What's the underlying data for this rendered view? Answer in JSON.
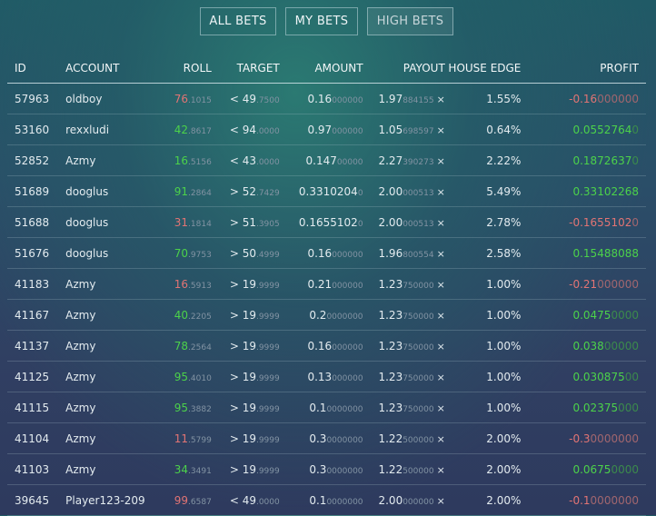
{
  "tabs": [
    {
      "label": "ALL BETS",
      "active": false
    },
    {
      "label": "MY BETS",
      "active": false
    },
    {
      "label": "HIGH BETS",
      "active": true
    }
  ],
  "columns": [
    "ID",
    "ACCOUNT",
    "ROLL",
    "TARGET",
    "AMOUNT",
    "PAYOUT",
    "HOUSE EDGE",
    "PROFIT"
  ],
  "colors": {
    "win": "#4cd24a",
    "loss": "#e27474",
    "dim": "#8293a3"
  },
  "rows": [
    {
      "id": "57963",
      "account": "oldboy",
      "roll_main": "76",
      "roll_dim": ".1015",
      "win": false,
      "target_main": "< 49",
      "target_dim": ".7500",
      "amount_main": "0.16",
      "amount_dim": "000000",
      "payout_main": "1.97",
      "payout_dim": "884155",
      "payout_mult": "×",
      "edge": "1.55%",
      "profit_main": "-0.16",
      "profit_dim": "000000"
    },
    {
      "id": "53160",
      "account": "rexxludi",
      "roll_main": "42",
      "roll_dim": ".8617",
      "win": true,
      "target_main": "< 94",
      "target_dim": ".0000",
      "amount_main": "0.97",
      "amount_dim": "000000",
      "payout_main": "1.05",
      "payout_dim": "698597",
      "payout_mult": "×",
      "edge": "0.64%",
      "profit_main": "0.0552764",
      "profit_dim": "0"
    },
    {
      "id": "52852",
      "account": "Azmy",
      "roll_main": "16",
      "roll_dim": ".5156",
      "win": true,
      "target_main": "< 43",
      "target_dim": ".0000",
      "amount_main": "0.147",
      "amount_dim": "00000",
      "payout_main": "2.27",
      "payout_dim": "390273",
      "payout_mult": "×",
      "edge": "2.22%",
      "profit_main": "0.1872637",
      "profit_dim": "0"
    },
    {
      "id": "51689",
      "account": "dooglus",
      "roll_main": "91",
      "roll_dim": ".2864",
      "win": true,
      "target_main": "> 52",
      "target_dim": ".7429",
      "amount_main": "0.3310204",
      "amount_dim": "0",
      "payout_main": "2.00",
      "payout_dim": "000513",
      "payout_mult": "×",
      "edge": "5.49%",
      "profit_main": "0.33102268",
      "profit_dim": ""
    },
    {
      "id": "51688",
      "account": "dooglus",
      "roll_main": "31",
      "roll_dim": ".1814",
      "win": false,
      "target_main": "> 51",
      "target_dim": ".3905",
      "amount_main": "0.1655102",
      "amount_dim": "0",
      "payout_main": "2.00",
      "payout_dim": "000513",
      "payout_mult": "×",
      "edge": "2.78%",
      "profit_main": "-0.1655102",
      "profit_dim": "0"
    },
    {
      "id": "51676",
      "account": "dooglus",
      "roll_main": "70",
      "roll_dim": ".9753",
      "win": true,
      "target_main": "> 50",
      "target_dim": ".4999",
      "amount_main": "0.16",
      "amount_dim": "000000",
      "payout_main": "1.96",
      "payout_dim": "800554",
      "payout_mult": "×",
      "edge": "2.58%",
      "profit_main": "0.15488088",
      "profit_dim": ""
    },
    {
      "id": "41183",
      "account": "Azmy",
      "roll_main": "16",
      "roll_dim": ".5913",
      "win": false,
      "target_main": "> 19",
      "target_dim": ".9999",
      "amount_main": "0.21",
      "amount_dim": "000000",
      "payout_main": "1.23",
      "payout_dim": "750000",
      "payout_mult": "×",
      "edge": "1.00%",
      "profit_main": "-0.21",
      "profit_dim": "000000"
    },
    {
      "id": "41167",
      "account": "Azmy",
      "roll_main": "40",
      "roll_dim": ".2205",
      "win": true,
      "target_main": "> 19",
      "target_dim": ".9999",
      "amount_main": "0.2",
      "amount_dim": "0000000",
      "payout_main": "1.23",
      "payout_dim": "750000",
      "payout_mult": "×",
      "edge": "1.00%",
      "profit_main": "0.0475",
      "profit_dim": "0000"
    },
    {
      "id": "41137",
      "account": "Azmy",
      "roll_main": "78",
      "roll_dim": ".2564",
      "win": true,
      "target_main": "> 19",
      "target_dim": ".9999",
      "amount_main": "0.16",
      "amount_dim": "000000",
      "payout_main": "1.23",
      "payout_dim": "750000",
      "payout_mult": "×",
      "edge": "1.00%",
      "profit_main": "0.038",
      "profit_dim": "00000"
    },
    {
      "id": "41125",
      "account": "Azmy",
      "roll_main": "95",
      "roll_dim": ".4010",
      "win": true,
      "target_main": "> 19",
      "target_dim": ".9999",
      "amount_main": "0.13",
      "amount_dim": "000000",
      "payout_main": "1.23",
      "payout_dim": "750000",
      "payout_mult": "×",
      "edge": "1.00%",
      "profit_main": "0.030875",
      "profit_dim": "00"
    },
    {
      "id": "41115",
      "account": "Azmy",
      "roll_main": "95",
      "roll_dim": ".3882",
      "win": true,
      "target_main": "> 19",
      "target_dim": ".9999",
      "amount_main": "0.1",
      "amount_dim": "0000000",
      "payout_main": "1.23",
      "payout_dim": "750000",
      "payout_mult": "×",
      "edge": "1.00%",
      "profit_main": "0.02375",
      "profit_dim": "000"
    },
    {
      "id": "41104",
      "account": "Azmy",
      "roll_main": "11",
      "roll_dim": ".5799",
      "win": false,
      "target_main": "> 19",
      "target_dim": ".9999",
      "amount_main": "0.3",
      "amount_dim": "0000000",
      "payout_main": "1.22",
      "payout_dim": "500000",
      "payout_mult": "×",
      "edge": "2.00%",
      "profit_main": "-0.3",
      "profit_dim": "0000000"
    },
    {
      "id": "41103",
      "account": "Azmy",
      "roll_main": "34",
      "roll_dim": ".3491",
      "win": true,
      "target_main": "> 19",
      "target_dim": ".9999",
      "amount_main": "0.3",
      "amount_dim": "0000000",
      "payout_main": "1.22",
      "payout_dim": "500000",
      "payout_mult": "×",
      "edge": "2.00%",
      "profit_main": "0.0675",
      "profit_dim": "0000"
    },
    {
      "id": "39645",
      "account": "Player123-209",
      "roll_main": "99",
      "roll_dim": ".6587",
      "win": false,
      "target_main": "< 49",
      "target_dim": ".0000",
      "amount_main": "0.1",
      "amount_dim": "0000000",
      "payout_main": "2.00",
      "payout_dim": "000000",
      "payout_mult": "×",
      "edge": "2.00%",
      "profit_main": "-0.1",
      "profit_dim": "0000000"
    }
  ]
}
